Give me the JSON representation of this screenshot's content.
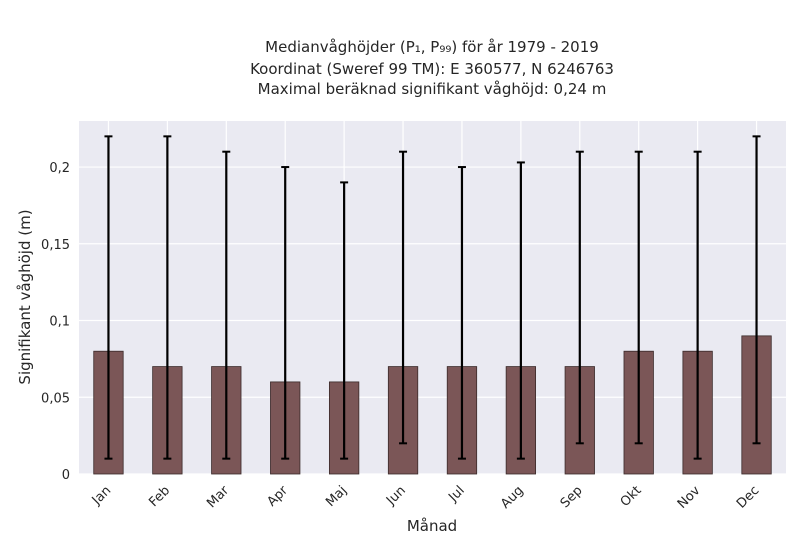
{
  "chart_data": {
    "type": "bar",
    "title_lines": [
      "Medianvåghöjder (P₁, P₉₉) för år 1979 - 2019",
      "Koordinat (Sweref 99 TM): E 360577, N 6246763",
      "Maximal beräknad signifikant våghöjd: 0,24 m"
    ],
    "xlabel": "Månad",
    "ylabel": "Signifikant våghöjd (m)",
    "categories": [
      "Jan",
      "Feb",
      "Mar",
      "Apr",
      "Maj",
      "Jun",
      "Jul",
      "Aug",
      "Sep",
      "Okt",
      "Nov",
      "Dec"
    ],
    "values": [
      0.08,
      0.07,
      0.07,
      0.06,
      0.06,
      0.07,
      0.07,
      0.07,
      0.07,
      0.08,
      0.08,
      0.09
    ],
    "p1": [
      0.01,
      0.01,
      0.01,
      0.01,
      0.01,
      0.02,
      0.01,
      0.01,
      0.02,
      0.02,
      0.01,
      0.02
    ],
    "p99": [
      0.22,
      0.22,
      0.21,
      0.2,
      0.19,
      0.21,
      0.2,
      0.203,
      0.21,
      0.21,
      0.21,
      0.22
    ],
    "ylim": [
      0,
      0.23
    ],
    "yticks": [
      0,
      0.05,
      0.1,
      0.15,
      0.2
    ],
    "ytick_labels": [
      "0",
      "0,05",
      "0,1",
      "0,15",
      "0,2"
    ],
    "grid": true,
    "colors": {
      "bar": "#7b5657",
      "bar_edge": "#3a2a2a",
      "errorbar": "#000000",
      "plot_bg": "#eaeaf2",
      "grid": "#ffffff"
    }
  }
}
